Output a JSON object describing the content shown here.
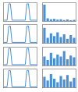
{
  "chart_data": [
    {
      "type": "line",
      "x": [
        0,
        5,
        10,
        15,
        20,
        25,
        30,
        35,
        40,
        45,
        50,
        55,
        60,
        65,
        70,
        75,
        80,
        85,
        90,
        95,
        100
      ],
      "values": [
        0.05,
        0.05,
        0.05,
        0.95,
        0.95,
        0.05,
        0.05,
        0.05,
        0.05,
        0.05,
        0.05,
        0.05,
        0.05,
        0.05,
        0.95,
        0.95,
        0.05,
        0.05,
        0.05,
        0.05,
        0.05
      ],
      "color": "#4a90d9",
      "xlim": [
        0,
        100
      ],
      "ylim": [
        0,
        1
      ],
      "tick_labels": false
    },
    {
      "type": "bar",
      "x": [
        1,
        2,
        3,
        4,
        5,
        6,
        7,
        8,
        9,
        10
      ],
      "values": [
        0.9,
        0.15,
        0.1,
        0.12,
        0.08,
        0.1,
        0.06,
        0.09,
        0.05,
        0.07
      ],
      "color": "#4a90d9",
      "xlim": [
        0.5,
        10.5
      ],
      "ylim": [
        0,
        1
      ],
      "tick_labels": false
    },
    {
      "type": "line",
      "x": [
        0,
        5,
        10,
        15,
        20,
        25,
        30,
        35,
        40,
        45,
        50,
        55,
        60,
        65,
        70,
        75,
        80,
        85,
        90,
        95,
        100
      ],
      "values": [
        0.05,
        0.05,
        0.05,
        0.95,
        0.95,
        0.05,
        0.05,
        0.05,
        0.05,
        0.05,
        0.05,
        0.05,
        0.05,
        0.05,
        0.95,
        0.95,
        0.05,
        0.05,
        0.05,
        0.05,
        0.05
      ],
      "color": "#4a90d9",
      "xlim": [
        0,
        100
      ],
      "ylim": [
        0,
        1
      ],
      "tick_labels": false
    },
    {
      "type": "bar",
      "x": [
        1,
        2,
        3,
        4,
        5,
        6,
        7,
        8,
        9,
        10
      ],
      "values": [
        0.85,
        0.3,
        0.55,
        0.4,
        0.6,
        0.35,
        0.5,
        0.25,
        0.45,
        0.3
      ],
      "color": "#4a90d9",
      "xlim": [
        0.5,
        10.5
      ],
      "ylim": [
        0,
        1
      ],
      "tick_labels": false
    },
    {
      "type": "line",
      "x": [
        0,
        5,
        10,
        15,
        20,
        25,
        30,
        35,
        40,
        45,
        50,
        55,
        60,
        65,
        70,
        75,
        80,
        85,
        90,
        95,
        100
      ],
      "values": [
        0.05,
        0.05,
        0.05,
        0.95,
        0.95,
        0.05,
        0.05,
        0.05,
        0.05,
        0.05,
        0.05,
        0.05,
        0.05,
        0.05,
        0.95,
        0.95,
        0.05,
        0.05,
        0.05,
        0.05,
        0.05
      ],
      "color": "#4a90d9",
      "xlim": [
        0,
        100
      ],
      "ylim": [
        0,
        1
      ],
      "tick_labels": false
    },
    {
      "type": "bar",
      "x": [
        1,
        2,
        3,
        4,
        5,
        6,
        7,
        8,
        9,
        10
      ],
      "values": [
        0.5,
        0.3,
        0.7,
        0.4,
        0.6,
        0.5,
        0.8,
        0.35,
        0.55,
        0.45
      ],
      "color": "#4a90d9",
      "xlim": [
        0.5,
        10.5
      ],
      "ylim": [
        0,
        1
      ],
      "tick_labels": false
    },
    {
      "type": "line",
      "x": [
        0,
        5,
        10,
        15,
        20,
        25,
        30,
        35,
        40,
        45,
        50,
        55,
        60,
        65,
        70,
        75,
        80,
        85,
        90,
        95,
        100
      ],
      "values": [
        0.05,
        0.05,
        0.05,
        0.95,
        0.95,
        0.05,
        0.05,
        0.05,
        0.05,
        0.05,
        0.05,
        0.05,
        0.05,
        0.05,
        0.95,
        0.95,
        0.05,
        0.05,
        0.05,
        0.05,
        0.05
      ],
      "color": "#4a90d9",
      "xlim": [
        0,
        100
      ],
      "ylim": [
        0,
        1
      ],
      "tick_labels": false
    },
    {
      "type": "bar",
      "x": [
        1,
        2,
        3,
        4,
        5,
        6,
        7,
        8,
        9,
        10
      ],
      "values": [
        0.6,
        0.4,
        0.75,
        0.5,
        0.3,
        0.65,
        0.45,
        0.7,
        0.35,
        0.55
      ],
      "color": "#4a90d9",
      "xlim": [
        0.5,
        10.5
      ],
      "ylim": [
        0,
        1
      ],
      "tick_labels": false
    }
  ]
}
